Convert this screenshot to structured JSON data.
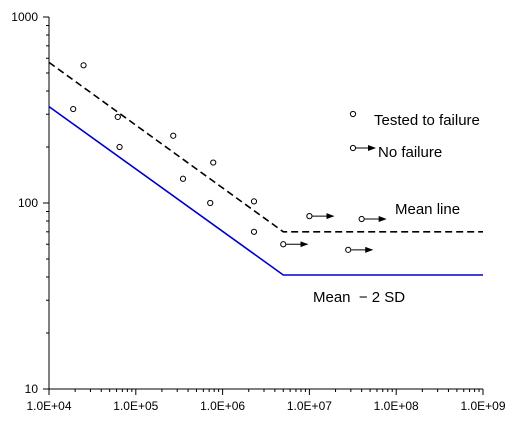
{
  "chart_data": {
    "type": "scatter",
    "x_scale": "log",
    "y_scale": "log",
    "xlim": [
      10000,
      1000000000
    ],
    "ylim": [
      10,
      1000
    ],
    "grid": false,
    "x_ticks": [
      "1.0E+04",
      "1.0E+05",
      "1.0E+06",
      "1.0E+07",
      "1.0E+08",
      "1.0E+09"
    ],
    "y_ticks": [
      "10",
      "100",
      "1000"
    ],
    "series": [
      {
        "name": "Tested to failure",
        "marker": "circle",
        "points": [
          [
            19000,
            320
          ],
          [
            25000,
            550
          ],
          [
            62000,
            290
          ],
          [
            65000,
            200
          ],
          [
            270000,
            230
          ],
          [
            350000,
            135
          ],
          [
            720000,
            100
          ],
          [
            780000,
            165
          ],
          [
            2300000,
            102
          ],
          [
            2300000,
            70
          ]
        ]
      },
      {
        "name": "No failure",
        "marker": "circle-arrow",
        "points": [
          [
            5000000,
            60
          ],
          [
            10000000,
            85
          ],
          [
            28000000,
            56
          ],
          [
            40000000,
            82
          ]
        ]
      }
    ],
    "lines": [
      {
        "name": "Mean line",
        "style": "dashed",
        "color": "#000000",
        "points": [
          [
            10000,
            570
          ],
          [
            5000000,
            70
          ],
          [
            1000000000,
            70
          ]
        ]
      },
      {
        "name": "Mean  − 2 SD",
        "style": "solid",
        "color": "#0000cc",
        "points": [
          [
            10000,
            330
          ],
          [
            5000000,
            41
          ],
          [
            1000000000,
            41
          ]
        ]
      }
    ]
  }
}
